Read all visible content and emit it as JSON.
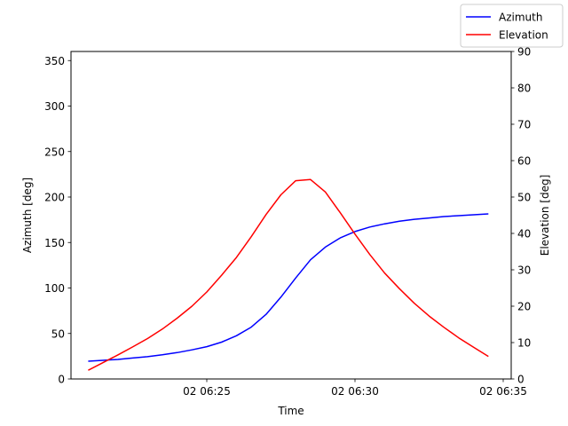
{
  "chart_data": {
    "type": "line",
    "title": "",
    "xlabel": "Time",
    "ylabel_left": "Azimuth [deg]",
    "ylabel_right": "Elevation [deg]",
    "x_ticks": [
      "02 06:25",
      "02 06:30",
      "02 06:35"
    ],
    "y_left_ticks": [
      0,
      50,
      100,
      150,
      200,
      250,
      300,
      350
    ],
    "y_right_ticks": [
      0,
      10,
      20,
      30,
      40,
      50,
      60,
      70,
      80,
      90
    ],
    "y_left_lim": [
      0,
      360
    ],
    "y_right_lim": [
      0,
      90
    ],
    "legend": {
      "location": "upper right"
    },
    "series": [
      {
        "name": "Azimuth",
        "axis": "left",
        "color": "#0000ff",
        "x": [
          "06:21:00",
          "06:21:30",
          "06:22:00",
          "06:22:30",
          "06:23:00",
          "06:23:30",
          "06:24:00",
          "06:24:30",
          "06:25:00",
          "06:25:30",
          "06:26:00",
          "06:26:30",
          "06:27:00",
          "06:27:30",
          "06:28:00",
          "06:28:30",
          "06:29:00",
          "06:29:30",
          "06:30:00",
          "06:30:30",
          "06:31:00",
          "06:31:30",
          "06:32:00",
          "06:32:30",
          "06:33:00",
          "06:33:30",
          "06:34:00",
          "06:34:30"
        ],
        "values": [
          19.5,
          20.5,
          21.5,
          23,
          24.5,
          26.5,
          29,
          32,
          35.5,
          40.5,
          47.5,
          57,
          71,
          90,
          111,
          131,
          145,
          155,
          162,
          167,
          170.5,
          173.5,
          175.5,
          177,
          178.5,
          179.5,
          180.5,
          181.5
        ]
      },
      {
        "name": "Elevation",
        "axis": "right",
        "color": "#ff0000",
        "x": [
          "06:21:00",
          "06:21:30",
          "06:22:00",
          "06:22:30",
          "06:23:00",
          "06:23:30",
          "06:24:00",
          "06:24:30",
          "06:25:00",
          "06:25:30",
          "06:26:00",
          "06:26:30",
          "06:27:00",
          "06:27:30",
          "06:28:00",
          "06:28:30",
          "06:29:00",
          "06:29:30",
          "06:30:00",
          "06:30:30",
          "06:31:00",
          "06:31:30",
          "06:32:00",
          "06:32:30",
          "06:33:00",
          "06:33:30",
          "06:34:00",
          "06:34:30"
        ],
        "values": [
          2.4,
          4.5,
          6.6,
          8.8,
          11.1,
          13.7,
          16.7,
          20,
          23.9,
          28.5,
          33.4,
          39.1,
          45.2,
          50.6,
          54.5,
          54.8,
          51.4,
          45.7,
          39.8,
          34.2,
          29.1,
          24.8,
          20.8,
          17.3,
          14.2,
          11.3,
          8.7,
          6.2
        ]
      }
    ]
  }
}
